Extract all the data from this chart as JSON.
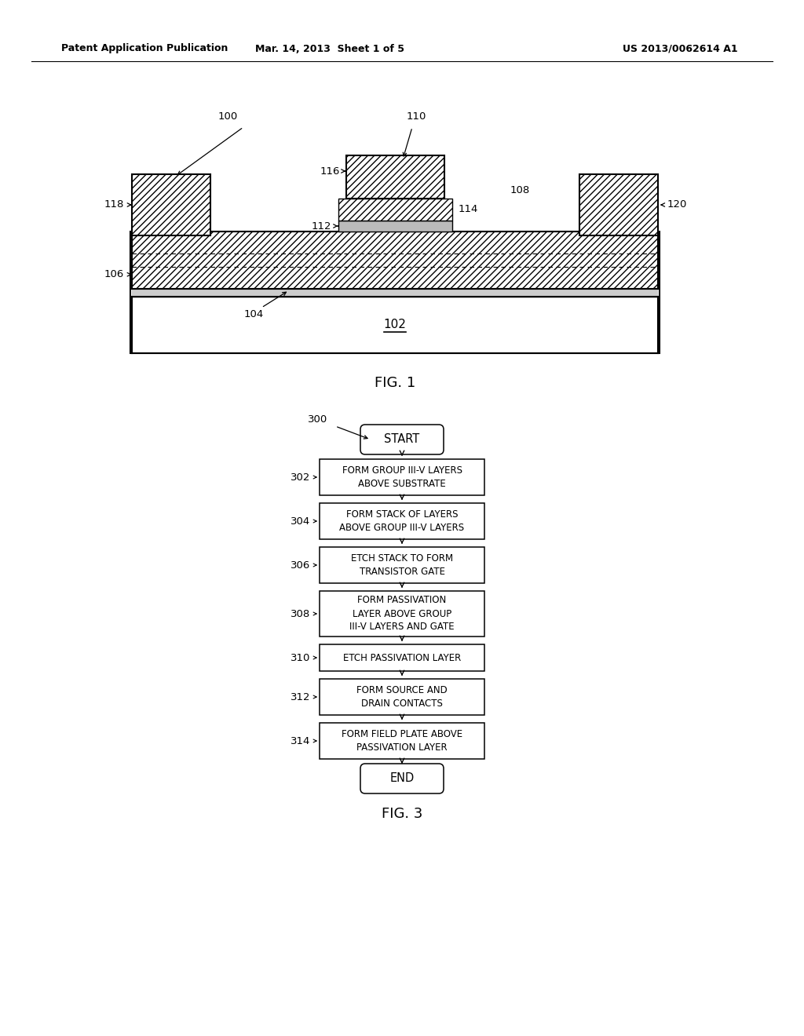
{
  "header_left": "Patent Application Publication",
  "header_mid": "Mar. 14, 2013  Sheet 1 of 5",
  "header_right": "US 2013/0062614 A1",
  "fig1_label": "FIG. 1",
  "fig3_label": "FIG. 3",
  "bg_color": "#ffffff"
}
